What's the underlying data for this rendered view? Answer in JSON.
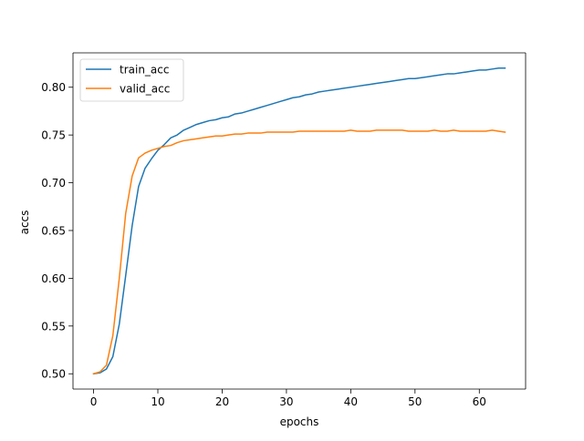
{
  "chart_data": {
    "type": "line",
    "title": "",
    "xlabel": "epochs",
    "ylabel": "accs",
    "xlim": [
      -3.2,
      67.2
    ],
    "ylim": [
      0.484,
      0.836
    ],
    "xticks": [
      0,
      10,
      20,
      30,
      40,
      50,
      60
    ],
    "xtick_labels": [
      "0",
      "10",
      "20",
      "30",
      "40",
      "50",
      "60"
    ],
    "yticks": [
      0.5,
      0.55,
      0.6,
      0.65,
      0.7,
      0.75,
      0.8
    ],
    "ytick_labels": [
      "0.50",
      "0.55",
      "0.60",
      "0.65",
      "0.70",
      "0.75",
      "0.80"
    ],
    "grid": false,
    "legend": {
      "placement": "upper-left"
    },
    "series": [
      {
        "name": "train_acc",
        "color": "#1f77b4",
        "x": [
          0,
          1,
          2,
          3,
          4,
          5,
          6,
          7,
          8,
          9,
          10,
          11,
          12,
          13,
          14,
          15,
          16,
          17,
          18,
          19,
          20,
          21,
          22,
          23,
          24,
          25,
          26,
          27,
          28,
          29,
          30,
          31,
          32,
          33,
          34,
          35,
          36,
          37,
          38,
          39,
          40,
          41,
          42,
          43,
          44,
          45,
          46,
          47,
          48,
          49,
          50,
          51,
          52,
          53,
          54,
          55,
          56,
          57,
          58,
          59,
          60,
          61,
          62,
          63,
          64
        ],
        "y": [
          0.5,
          0.501,
          0.505,
          0.518,
          0.552,
          0.603,
          0.655,
          0.696,
          0.715,
          0.725,
          0.734,
          0.74,
          0.747,
          0.75,
          0.755,
          0.758,
          0.761,
          0.763,
          0.765,
          0.766,
          0.768,
          0.769,
          0.772,
          0.773,
          0.775,
          0.777,
          0.779,
          0.781,
          0.783,
          0.785,
          0.787,
          0.789,
          0.79,
          0.792,
          0.793,
          0.795,
          0.796,
          0.797,
          0.798,
          0.799,
          0.8,
          0.801,
          0.802,
          0.803,
          0.804,
          0.805,
          0.806,
          0.807,
          0.808,
          0.809,
          0.809,
          0.81,
          0.811,
          0.812,
          0.813,
          0.814,
          0.814,
          0.815,
          0.816,
          0.817,
          0.818,
          0.818,
          0.819,
          0.82,
          0.82
        ]
      },
      {
        "name": "valid_acc",
        "color": "#ff7f0e",
        "x": [
          0,
          1,
          2,
          3,
          4,
          5,
          6,
          7,
          8,
          9,
          10,
          11,
          12,
          13,
          14,
          15,
          16,
          17,
          18,
          19,
          20,
          21,
          22,
          23,
          24,
          25,
          26,
          27,
          28,
          29,
          30,
          31,
          32,
          33,
          34,
          35,
          36,
          37,
          38,
          39,
          40,
          41,
          42,
          43,
          44,
          45,
          46,
          47,
          48,
          49,
          50,
          51,
          52,
          53,
          54,
          55,
          56,
          57,
          58,
          59,
          60,
          61,
          62,
          63,
          64
        ],
        "y": [
          0.5,
          0.502,
          0.509,
          0.54,
          0.6,
          0.668,
          0.707,
          0.726,
          0.731,
          0.734,
          0.736,
          0.738,
          0.739,
          0.742,
          0.744,
          0.745,
          0.746,
          0.747,
          0.748,
          0.749,
          0.749,
          0.75,
          0.751,
          0.751,
          0.752,
          0.752,
          0.752,
          0.753,
          0.753,
          0.753,
          0.753,
          0.753,
          0.754,
          0.754,
          0.754,
          0.754,
          0.754,
          0.754,
          0.754,
          0.754,
          0.755,
          0.754,
          0.754,
          0.754,
          0.755,
          0.755,
          0.755,
          0.755,
          0.755,
          0.754,
          0.754,
          0.754,
          0.754,
          0.755,
          0.754,
          0.754,
          0.755,
          0.754,
          0.754,
          0.754,
          0.754,
          0.754,
          0.755,
          0.754,
          0.753
        ]
      }
    ]
  }
}
